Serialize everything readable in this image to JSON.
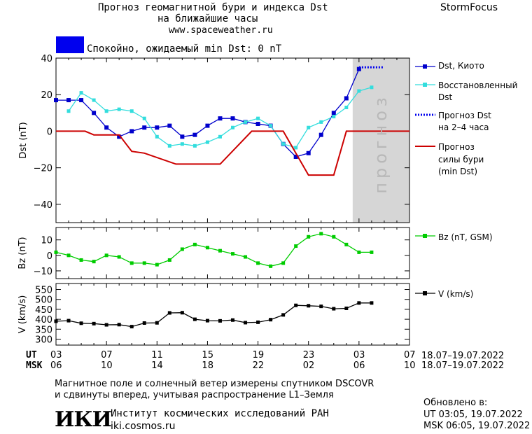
{
  "header": {
    "title_line1": "Прогноз геомагнитной бури и индекса Dst",
    "title_line2": "на ближайшие часы",
    "url": "www.spaceweather.ru",
    "brand": "StormFocus"
  },
  "status": {
    "color": "#0000ee",
    "text": "Спокойно, ожидаемый min Dst: 0 nT"
  },
  "forecast_label": "прогноз",
  "time_axis": {
    "ut_label": "UT",
    "msk_label": "MSK",
    "ut_ticks": [
      "03",
      "07",
      "11",
      "15",
      "19",
      "23",
      "03",
      "07"
    ],
    "msk_ticks": [
      "06",
      "10",
      "14",
      "18",
      "22",
      "02",
      "06",
      "10"
    ],
    "ut_range": "18.07–19.07.2022",
    "msk_range": "18.07–19.07.2022"
  },
  "chart_data": [
    {
      "type": "line",
      "panel": "Dst",
      "ylabel": "Dst (nT)",
      "ylim": [
        -50,
        40
      ],
      "yticks": [
        "40",
        "20",
        "0",
        "−20",
        "−40"
      ],
      "xlim_hours": [
        0,
        28
      ],
      "forecast_shade_from": 23.5,
      "series": [
        {
          "name": "Dst, Киото",
          "color": "#0000cc",
          "x": [
            0,
            1,
            2,
            3,
            4,
            5,
            6,
            7,
            8,
            9,
            10,
            11,
            12,
            13,
            14,
            15,
            16,
            17,
            18,
            19,
            20,
            21,
            22,
            23,
            24
          ],
          "y": [
            17,
            17,
            17,
            10,
            2,
            -3,
            0,
            2,
            2,
            3,
            -3,
            -2,
            3,
            7,
            7,
            5,
            4,
            3,
            -7,
            -14,
            -12,
            -2,
            10,
            18,
            34
          ]
        },
        {
          "name": "Восстановленный Dst",
          "color": "#33dddd",
          "x": [
            1,
            2,
            3,
            4,
            5,
            6,
            7,
            8,
            9,
            10,
            11,
            12,
            13,
            14,
            15,
            16,
            17,
            18,
            19,
            20,
            21,
            22,
            23,
            24,
            25
          ],
          "y": [
            11,
            21,
            17,
            11,
            12,
            11,
            7,
            -3,
            -8,
            -7,
            -8,
            -6,
            -3,
            2,
            5,
            7,
            3,
            -7,
            -9,
            2,
            5,
            8,
            13,
            22,
            24
          ]
        },
        {
          "name": "Прогноз Dst на 2-4 часа",
          "color": "#0000ee",
          "dotted": true,
          "x": [
            24,
            25,
            26
          ],
          "y": [
            35,
            35,
            35
          ]
        },
        {
          "name": "Прогноз силы бури (min Dst)",
          "color": "#cc0000",
          "step": true,
          "x": [
            0,
            2.3,
            3,
            5,
            6,
            7,
            9.5,
            10.5,
            11,
            12,
            13,
            15.5,
            16.5,
            17,
            18,
            20,
            21,
            22,
            23,
            24,
            28
          ],
          "y": [
            0,
            0,
            -2,
            -2,
            -11,
            -12,
            -18,
            -18,
            -18,
            -18,
            -18,
            0,
            0,
            0,
            0,
            -24,
            -24,
            -24,
            0,
            0,
            0
          ]
        }
      ]
    },
    {
      "type": "line",
      "panel": "Bz",
      "ylabel": "Bz (nT)",
      "ylim": [
        -15,
        18
      ],
      "yticks": [
        "10",
        "0",
        "−10"
      ],
      "series": [
        {
          "name": "Bz (nT, GSM)",
          "color": "#00cc00",
          "x": [
            0,
            1,
            2,
            3,
            4,
            5,
            6,
            7,
            8,
            9,
            10,
            11,
            12,
            13,
            14,
            15,
            16,
            17,
            18,
            19,
            20,
            21,
            22,
            23,
            24,
            25
          ],
          "y": [
            2,
            0,
            -3,
            -4,
            0,
            -1,
            -5,
            -5,
            -6,
            -3,
            4,
            7,
            5,
            3,
            1,
            -1,
            -5,
            -7,
            -5,
            6,
            12,
            14,
            12,
            7,
            2,
            2
          ]
        }
      ]
    },
    {
      "type": "line",
      "panel": "V",
      "ylabel": "V (km/s)",
      "ylim": [
        270,
        580
      ],
      "yticks": [
        "550",
        "500",
        "450",
        "400",
        "350",
        "300"
      ],
      "series": [
        {
          "name": "V (km/s)",
          "color": "#000000",
          "x": [
            0,
            1,
            2,
            3,
            4,
            5,
            6,
            7,
            8,
            9,
            10,
            11,
            12,
            13,
            14,
            15,
            16,
            17,
            18,
            19,
            20,
            21,
            22,
            23,
            24,
            25
          ],
          "y": [
            390,
            393,
            380,
            378,
            372,
            373,
            363,
            381,
            382,
            432,
            433,
            400,
            393,
            392,
            396,
            383,
            385,
            398,
            422,
            470,
            468,
            465,
            453,
            455,
            482,
            482
          ]
        }
      ]
    }
  ],
  "legend": {
    "dst_kyoto": "Dst, Киото",
    "dst_rec_1": "Восстановленный",
    "dst_rec_2": "Dst",
    "dst_fc_1": "Прогноз Dst",
    "dst_fc_2": "на 2–4 часа",
    "storm_1": "Прогноз",
    "storm_2": "силы бури",
    "storm_3": "(min Dst)",
    "bz": "Bz (nT, GSM)",
    "v": "V (km/s)"
  },
  "footer": {
    "note_line1": "Магнитное поле и солнечный ветер измерены спутником DSCOVR",
    "note_line2": "и сдвинуты вперед, учитывая распространение L1–Земля",
    "logo": "ИКИ",
    "institute": "Институт космических исследований РАН",
    "site": "iki.cosmos.ru",
    "updated_label": "Обновлено в:",
    "updated_ut": "UT  03:05, 19.07.2022",
    "updated_msk": "MSK 06:05, 19.07.2022"
  }
}
